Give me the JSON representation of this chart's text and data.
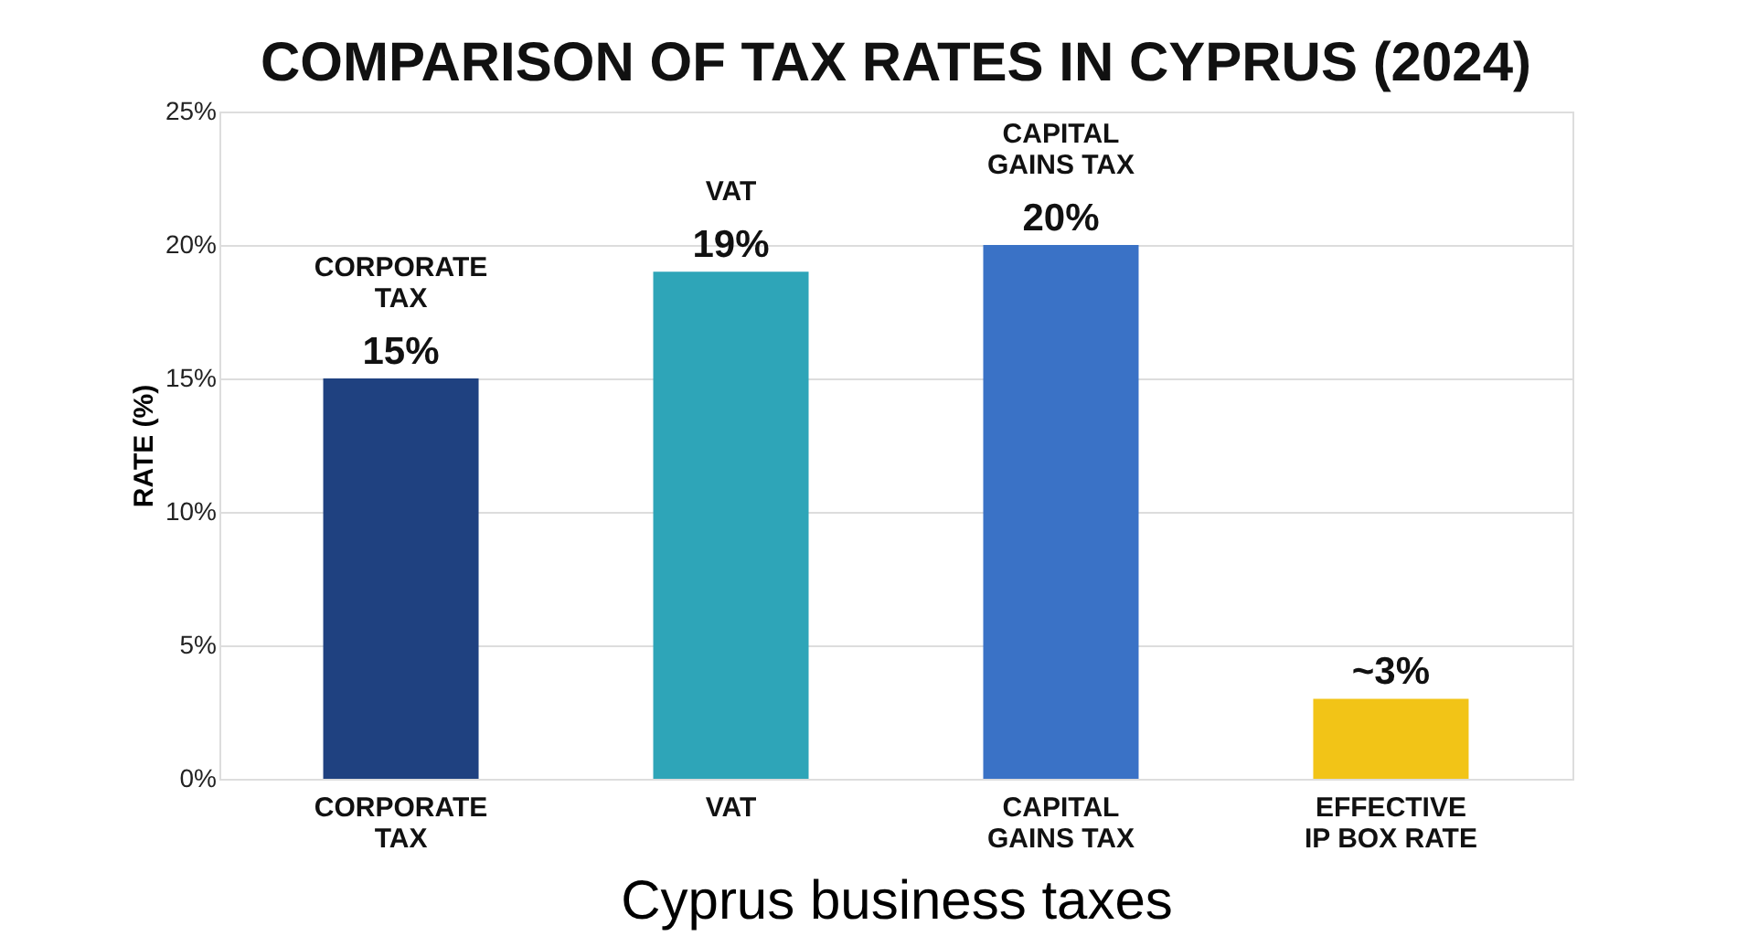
{
  "chart_data": {
    "type": "bar",
    "title": "COMPARISON OF TAX RATES IN CYPRUS (2024)",
    "xlabel": "Cyprus business taxes",
    "ylabel": "RATE (%)",
    "categories": [
      "CORPORATE\nTAX",
      "VAT",
      "CAPITAL\nGAINS TAX",
      "EFFECTIVE\nIP BOX RATE"
    ],
    "values": [
      15,
      19,
      20,
      3
    ],
    "colors": [
      "#1f4180",
      "#2ea5b8",
      "#3a72c6",
      "#f2c417"
    ],
    "value_labels": [
      "15%",
      "19%",
      "20%",
      "~3%"
    ],
    "annotations": [
      {
        "text": "CORPORATE\nTAX",
        "x": "CORPORATE\nTAX",
        "y": 15
      },
      {
        "text": "VAT",
        "x": "VAT",
        "y": 19
      },
      {
        "text": "CAPITAL\nGAINS TAX",
        "x": "CAPITAL\nGAINS TAX",
        "y": 20
      }
    ],
    "ylim": [
      0,
      25
    ],
    "yticks": [
      {
        "value": 0,
        "label": "0%"
      },
      {
        "value": 5,
        "label": "5%"
      },
      {
        "value": 10,
        "label": "10%"
      },
      {
        "value": 15,
        "label": "15%"
      },
      {
        "value": 20,
        "label": "20%"
      },
      {
        "value": 25,
        "label": "25%"
      }
    ],
    "grid": "y"
  }
}
